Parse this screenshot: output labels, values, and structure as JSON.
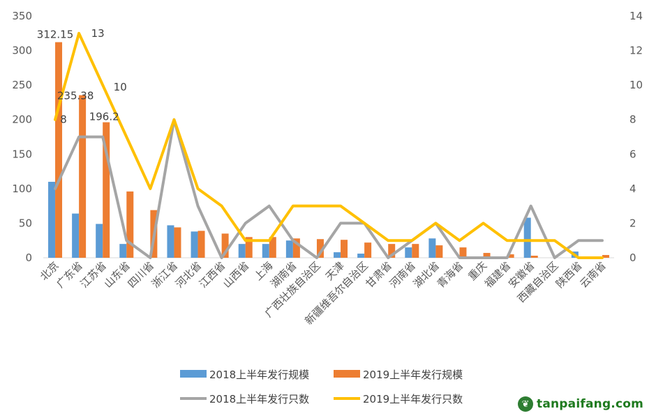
{
  "chart_data": {
    "type": "bar+line",
    "categories": [
      "北京",
      "广东省",
      "江苏省",
      "山东省",
      "四川省",
      "浙江省",
      "河北省",
      "江西省",
      "山西省",
      "上海",
      "湖南省",
      "广西壮族自治区",
      "天津",
      "新疆维吾尔自治区",
      "甘肃省",
      "河南省",
      "湖北省",
      "青海省",
      "重庆",
      "福建省",
      "安徽省",
      "西藏自治区",
      "陕西省",
      "云南省"
    ],
    "series": [
      {
        "name": "2018上半年发行规模",
        "type": "bar",
        "axis": "left",
        "values": [
          110,
          64,
          49,
          20,
          0,
          47,
          38,
          0,
          20,
          20,
          25,
          0,
          8,
          6,
          0,
          15,
          28,
          0,
          0,
          0,
          58,
          0,
          9,
          2
        ]
      },
      {
        "name": "2019上半年发行规模",
        "type": "bar",
        "axis": "left",
        "values": [
          312.15,
          235.38,
          196.2,
          96,
          69,
          44,
          39,
          35,
          30,
          30,
          28,
          27,
          26,
          22,
          20,
          20,
          18,
          15,
          7,
          5,
          3,
          0,
          0,
          4
        ]
      },
      {
        "name": "2018上半年发行只数",
        "type": "line",
        "axis": "right",
        "values": [
          4,
          7,
          7,
          1,
          0,
          8,
          3,
          0,
          2,
          3,
          1,
          0,
          2,
          2,
          0,
          1,
          2,
          0,
          0,
          0,
          3,
          0,
          1,
          1
        ]
      },
      {
        "name": "2019上半年发行只数",
        "type": "line",
        "axis": "right",
        "values": [
          8,
          13,
          10,
          7,
          4,
          8,
          4,
          3,
          1,
          1,
          3,
          3,
          3,
          2,
          1,
          1,
          2,
          1,
          2,
          1,
          1,
          1,
          0,
          0
        ]
      }
    ],
    "data_labels": [
      {
        "text": "312.15",
        "series": 1,
        "index": 0
      },
      {
        "text": "235.38",
        "series": 1,
        "index": 1
      },
      {
        "text": "196.2",
        "series": 1,
        "index": 2
      },
      {
        "text": "8",
        "series": 3,
        "index": 0
      },
      {
        "text": "13",
        "series": 3,
        "index": 1
      },
      {
        "text": "10",
        "series": 3,
        "index": 2
      }
    ],
    "y_left": {
      "min": 0,
      "max": 350,
      "step": 50,
      "ticks": [
        "0",
        "50",
        "100",
        "150",
        "200",
        "250",
        "300",
        "350"
      ]
    },
    "y_right": {
      "min": 0,
      "max": 14,
      "step": 2,
      "ticks": [
        "0",
        "2",
        "4",
        "6",
        "8",
        "10",
        "12",
        "14"
      ]
    },
    "grid": false,
    "legend_position": "bottom",
    "colors": {
      "bar2018": "#5b9bd5",
      "bar2019": "#ed7d31",
      "line2018": "#a5a5a5",
      "line2019": "#ffc000",
      "axis": "#d9d9d9"
    }
  },
  "watermark": {
    "icon": "leaf-logo-icon",
    "text": "tanpaifang.com"
  }
}
